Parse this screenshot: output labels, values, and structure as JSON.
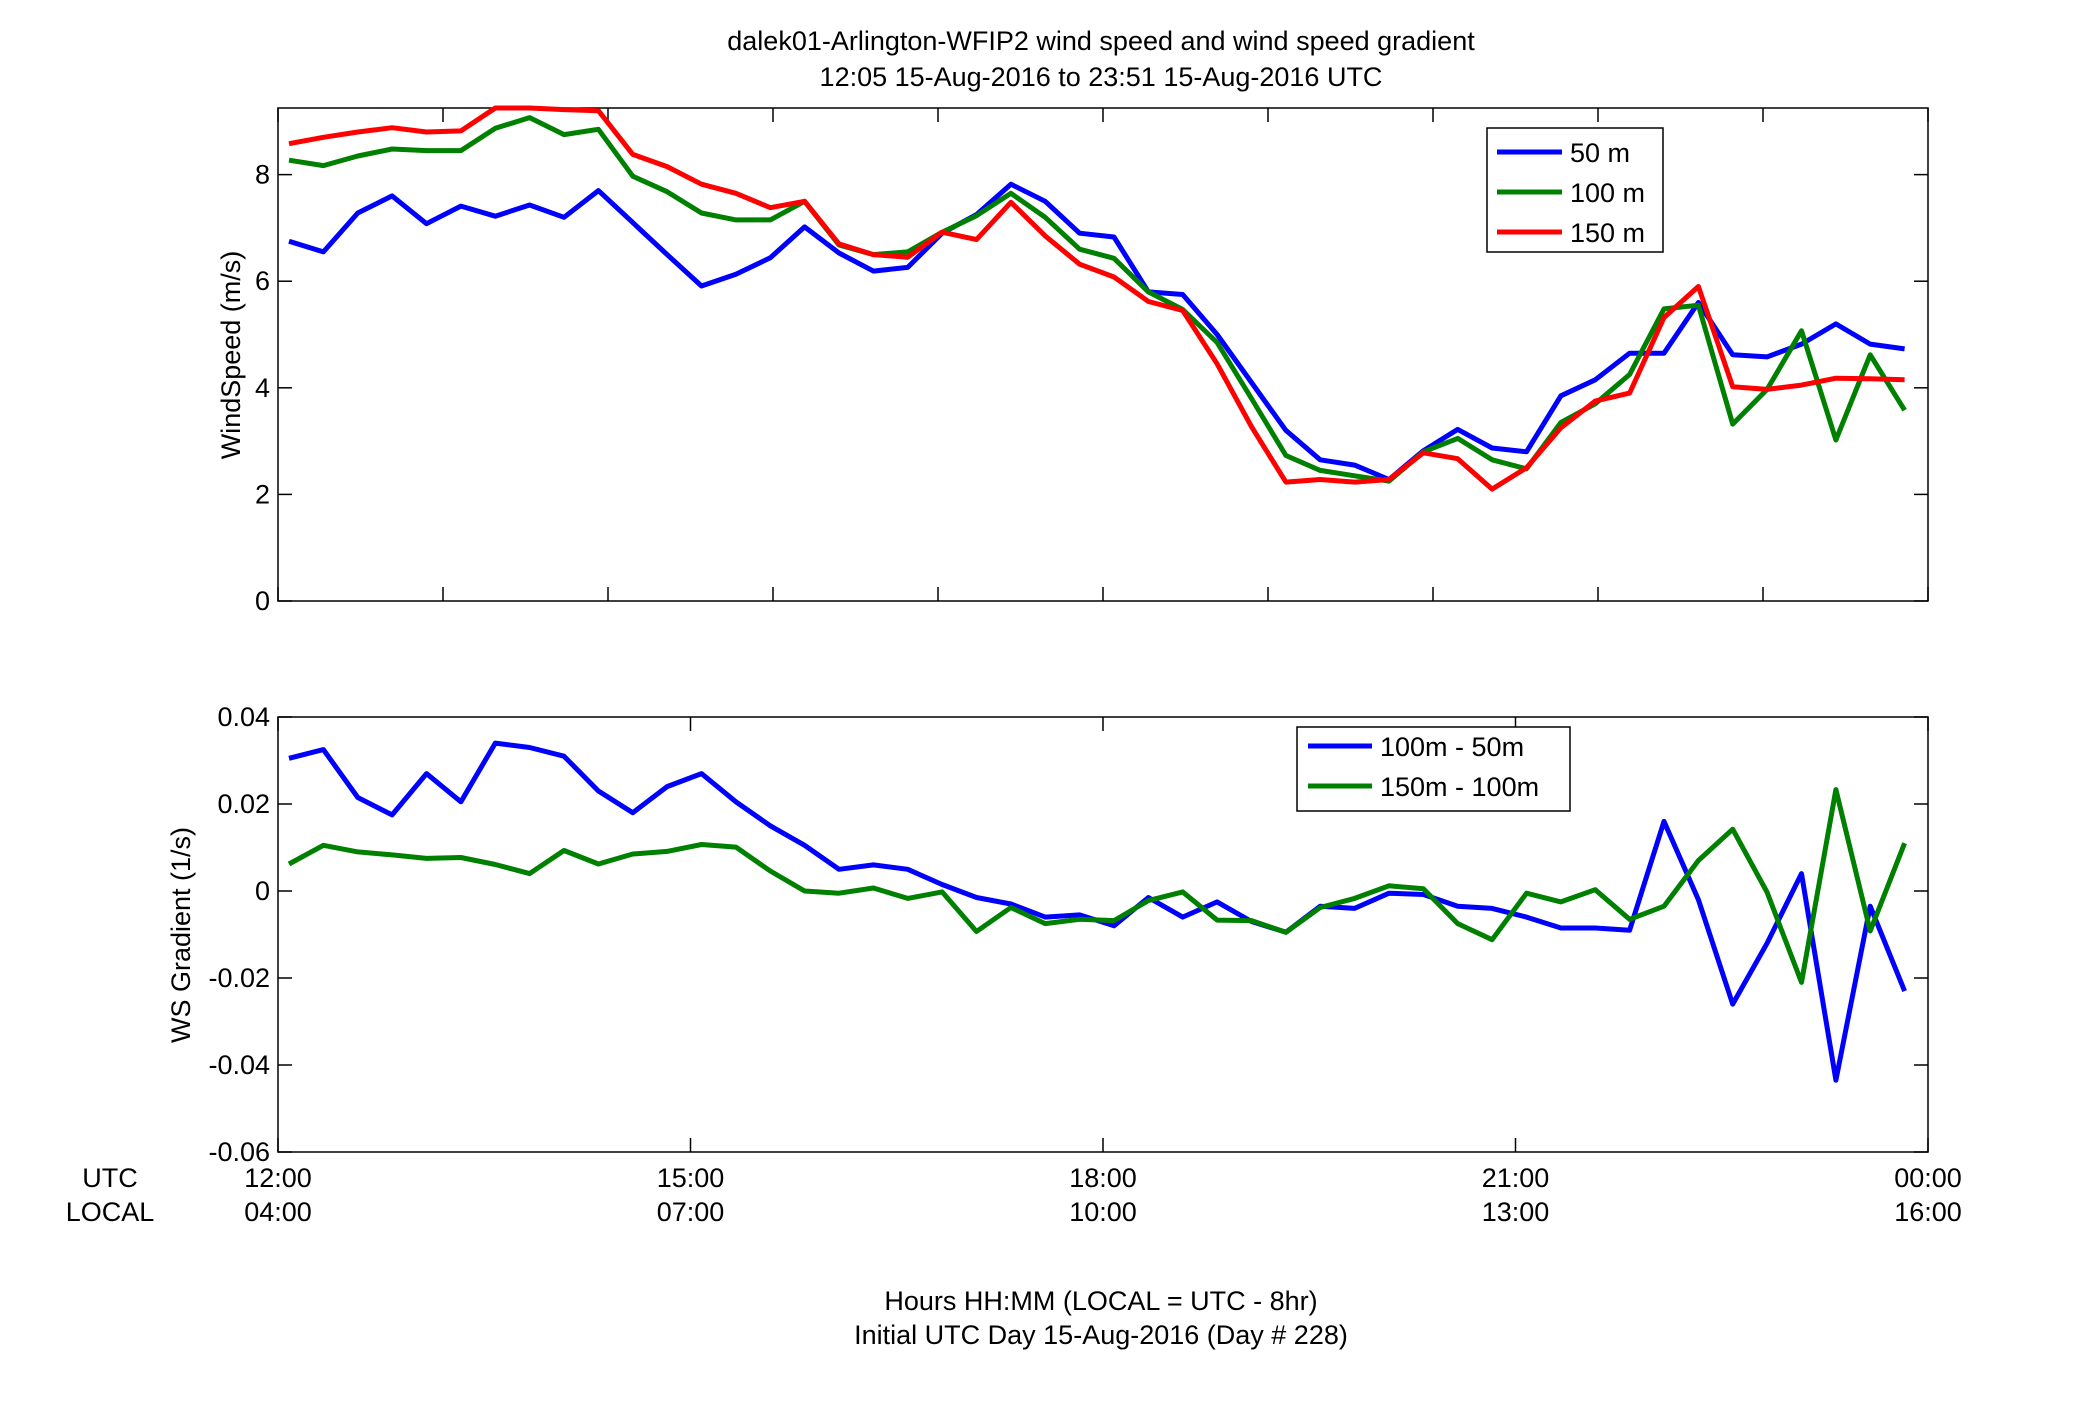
{
  "figure": {
    "title_line1": "dalek01-Arlington-WFIP2  wind speed and wind speed gradient",
    "title_line2": "12:05 15-Aug-2016 to 23:51 15-Aug-2016  UTC",
    "xlabel_line1": "Hours HH:MM  (LOCAL = UTC - 8hr)",
    "xlabel_line2": "Initial UTC Day 15-Aug-2016 (Day # 228)",
    "row_label_utc": "UTC",
    "row_label_local": "LOCAL",
    "utc_ticks": [
      "12:00",
      "15:00",
      "18:00",
      "21:00",
      "00:00"
    ],
    "local_ticks": [
      "04:00",
      "07:00",
      "10:00",
      "13:00",
      "16:00"
    ],
    "x_tick_hours": [
      12,
      15,
      18,
      21,
      24
    ]
  },
  "chart_data": [
    {
      "type": "line",
      "ylabel": "WindSpeed (m/s)",
      "xlim": [
        12,
        24
      ],
      "ylim": [
        0,
        9.25
      ],
      "yticks": [
        0,
        2,
        4,
        6,
        8
      ],
      "ytick_labels": [
        "0",
        "2",
        "4",
        "6",
        "8"
      ],
      "x_minor_ticks": [
        12,
        13.2,
        14.4,
        15.6,
        16.8,
        18,
        19.2,
        20.4,
        21.6,
        22.8,
        24
      ],
      "grid": false,
      "legend_position": "top-right",
      "x_hours": [
        12.08,
        12.33,
        12.58,
        12.83,
        13.08,
        13.33,
        13.58,
        13.83,
        14.08,
        14.33,
        14.58,
        14.83,
        15.08,
        15.33,
        15.58,
        15.83,
        16.08,
        16.33,
        16.58,
        16.83,
        17.08,
        17.33,
        17.58,
        17.83,
        18.08,
        18.33,
        18.58,
        18.83,
        19.08,
        19.33,
        19.58,
        19.83,
        20.08,
        20.33,
        20.58,
        20.83,
        21.08,
        21.33,
        21.58,
        21.83,
        22.08,
        22.33,
        22.58,
        22.83,
        23.08,
        23.33,
        23.58,
        23.83
      ],
      "series": [
        {
          "name": "50 m",
          "color": "#0000ff",
          "values": [
            6.75,
            6.55,
            7.28,
            7.6,
            7.08,
            7.41,
            7.22,
            7.43,
            7.2,
            7.7,
            7.1,
            6.5,
            5.91,
            6.13,
            6.44,
            7.02,
            6.53,
            6.19,
            6.26,
            6.9,
            7.25,
            7.82,
            7.5,
            6.9,
            6.83,
            5.8,
            5.75,
            5,
            4.1,
            3.2,
            2.65,
            2.55,
            2.28,
            2.82,
            3.22,
            2.87,
            2.8,
            3.85,
            4.15,
            4.65,
            4.65,
            5.6,
            4.62,
            4.58,
            4.82,
            5.2,
            4.82,
            4.73
          ]
        },
        {
          "name": "100 m",
          "color": "#008000",
          "values": [
            8.27,
            8.17,
            8.35,
            8.48,
            8.45,
            8.45,
            8.87,
            9.07,
            8.75,
            8.85,
            7.97,
            7.68,
            7.28,
            7.15,
            7.15,
            7.5,
            6.68,
            6.5,
            6.55,
            6.92,
            7.23,
            7.65,
            7.2,
            6.6,
            6.43,
            5.8,
            5.47,
            4.85,
            3.8,
            2.73,
            2.45,
            2.35,
            2.25,
            2.8,
            3.05,
            2.65,
            2.48,
            3.35,
            3.7,
            4.25,
            5.48,
            5.55,
            3.32,
            3.97,
            5.07,
            3.02,
            4.62,
            3.58
          ]
        },
        {
          "name": "150 m",
          "color": "#ff0000",
          "values": [
            8.58,
            8.7,
            8.8,
            8.88,
            8.8,
            8.82,
            9.25,
            9.25,
            9.22,
            9.2,
            8.38,
            8.15,
            7.82,
            7.65,
            7.38,
            7.5,
            6.7,
            6.5,
            6.45,
            6.92,
            6.78,
            7.48,
            6.85,
            6.32,
            6.08,
            5.62,
            5.45,
            4.45,
            3.27,
            2.23,
            2.28,
            2.23,
            2.28,
            2.78,
            2.67,
            2.1,
            2.5,
            3.25,
            3.75,
            3.9,
            5.32,
            5.9,
            4.02,
            3.97,
            4.05,
            4.18,
            4.17,
            4.15
          ]
        }
      ]
    },
    {
      "type": "line",
      "ylabel": "WS Gradient (1/s)",
      "xlim": [
        12,
        24
      ],
      "ylim": [
        -0.06,
        0.04
      ],
      "yticks": [
        -0.06,
        -0.04,
        -0.02,
        0,
        0.02,
        0.04
      ],
      "ytick_labels": [
        "-0.06",
        "-0.04",
        "-0.02",
        "0",
        "0.02",
        "0.04"
      ],
      "x_minor_ticks": [
        12,
        15,
        18,
        21,
        24
      ],
      "grid": false,
      "legend_position": "top-right",
      "x_hours": [
        12.08,
        12.33,
        12.58,
        12.83,
        13.08,
        13.33,
        13.58,
        13.83,
        14.08,
        14.33,
        14.58,
        14.83,
        15.08,
        15.33,
        15.58,
        15.83,
        16.08,
        16.33,
        16.58,
        16.83,
        17.08,
        17.33,
        17.58,
        17.83,
        18.08,
        18.33,
        18.58,
        18.83,
        19.08,
        19.33,
        19.58,
        19.83,
        20.08,
        20.33,
        20.58,
        20.83,
        21.08,
        21.33,
        21.58,
        21.83,
        22.08,
        22.33,
        22.58,
        22.83,
        23.08,
        23.33,
        23.58,
        23.83
      ],
      "series": [
        {
          "name": "100m - 50m",
          "color": "#0000ff",
          "values": [
            0.0305,
            0.0325,
            0.0215,
            0.0175,
            0.027,
            0.0205,
            0.034,
            0.033,
            0.031,
            0.023,
            0.018,
            0.024,
            0.027,
            0.0205,
            0.015,
            0.0105,
            0.005,
            0.006,
            0.005,
            0.0015,
            -0.0015,
            -0.003,
            -0.006,
            -0.0055,
            -0.008,
            -0.0015,
            -0.006,
            -0.0025,
            -0.007,
            -0.0095,
            -0.0035,
            -0.004,
            -0.0005,
            -0.0008,
            -0.0035,
            -0.004,
            -0.006,
            -0.0085,
            -0.0085,
            -0.009,
            0.016,
            -0.002,
            -0.026,
            -0.012,
            0.004,
            -0.0435,
            -0.0035,
            -0.023
          ]
        },
        {
          "name": "150m - 100m",
          "color": "#008000",
          "values": [
            0.0062,
            0.0105,
            0.009,
            0.0083,
            0.0075,
            0.0077,
            0.0061,
            0.004,
            0.0093,
            0.0062,
            0.0085,
            0.0091,
            0.0107,
            0.0101,
            0.0046,
            0,
            -0.0005,
            0.0007,
            -0.0017,
            -0.0002,
            -0.0093,
            -0.0038,
            -0.0075,
            -0.0065,
            -0.0068,
            -0.0022,
            -0.0002,
            -0.0067,
            -0.0068,
            -0.0095,
            -0.0038,
            -0.0017,
            0.0012,
            0.0005,
            -0.0075,
            -0.0112,
            -0.0005,
            -0.0025,
            0.0003,
            -0.0065,
            -0.0035,
            0.007,
            0.0142,
            -0.0003,
            -0.021,
            0.0233,
            -0.0092,
            0.011
          ]
        }
      ]
    }
  ]
}
